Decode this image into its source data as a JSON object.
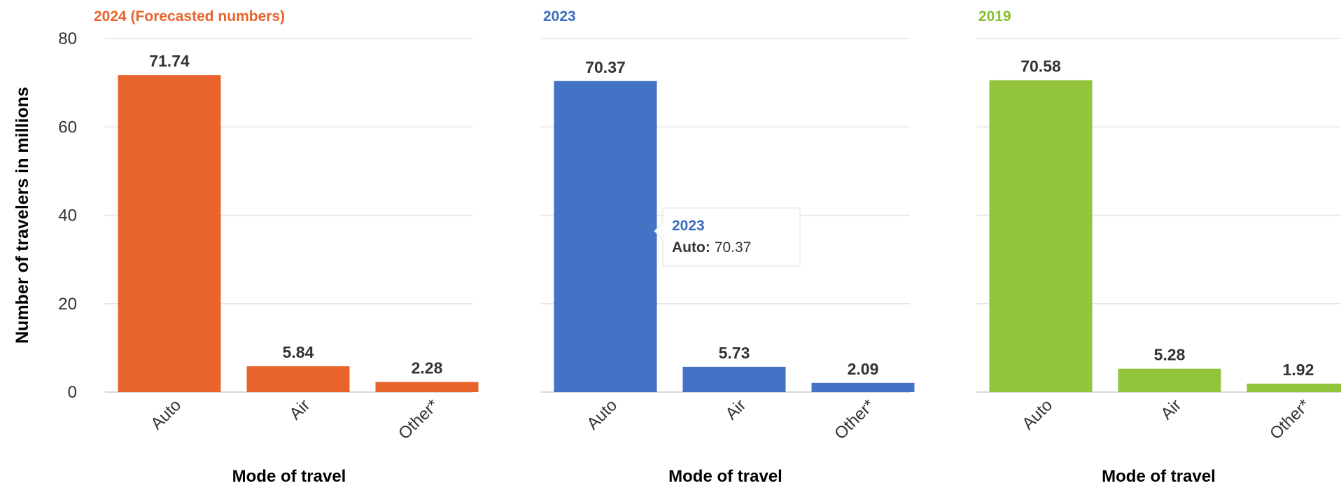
{
  "chart_data": [
    {
      "type": "bar",
      "title": "2024 (Forecasted numbers)",
      "title_color": "#e8642c",
      "bar_color": "#e8642c",
      "categories": [
        "Auto",
        "Air",
        "Other*"
      ],
      "series": [
        {
          "name": "2024 (Forecasted numbers)",
          "values": [
            71.74,
            5.84,
            2.28
          ]
        }
      ],
      "data_labels": [
        "71.74",
        "5.84",
        "2.28"
      ],
      "xlabel": "Mode of travel",
      "ylabel": "Number of travelers in millions",
      "ylim": [
        0,
        80
      ],
      "yticks": [
        "0",
        "20",
        "40",
        "60",
        "80"
      ],
      "grid": true
    },
    {
      "type": "bar",
      "title": "2023",
      "title_color": "#3e6dbf",
      "bar_color": "#4472c4",
      "categories": [
        "Auto",
        "Air",
        "Other*"
      ],
      "series": [
        {
          "name": "2023",
          "values": [
            70.37,
            5.73,
            2.09
          ]
        }
      ],
      "data_labels": [
        "70.37",
        "5.73",
        "2.09"
      ],
      "xlabel": "Mode of travel",
      "ylabel": "",
      "ylim": [
        0,
        80
      ],
      "yticks": [],
      "grid": true,
      "tooltip": {
        "series": "2023",
        "category": "Auto:",
        "value": "70.37",
        "color": "#3e6dbf"
      }
    },
    {
      "type": "bar",
      "title": "2019",
      "title_color": "#88bf2c",
      "bar_color": "#92c43c",
      "categories": [
        "Auto",
        "Air",
        "Other*"
      ],
      "series": [
        {
          "name": "2019",
          "values": [
            70.58,
            5.28,
            1.92
          ]
        }
      ],
      "data_labels": [
        "70.58",
        "5.28",
        "1.92"
      ],
      "xlabel": "Mode of travel",
      "ylabel": "",
      "ylim": [
        0,
        80
      ],
      "yticks": [],
      "grid": true
    }
  ]
}
